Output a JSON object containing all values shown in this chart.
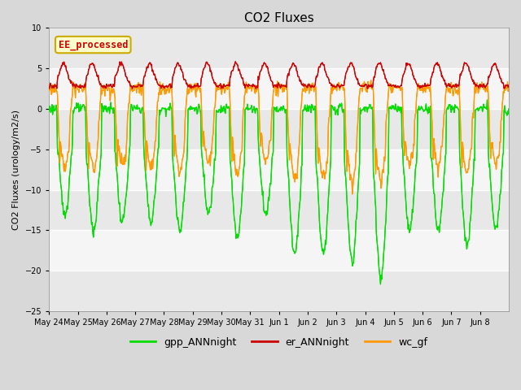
{
  "title": "CO2 Fluxes",
  "ylabel": "CO2 Fluxes (urology/m2/s)",
  "ylim": [
    -25,
    10
  ],
  "yticks": [
    -25,
    -20,
    -15,
    -10,
    -5,
    0,
    5,
    10
  ],
  "n_days": 16,
  "n_points_per_day": 48,
  "date_labels": [
    "May 24",
    "May 25",
    "May 26",
    "May 27",
    "May 28",
    "May 29",
    "May 30",
    "May 31",
    "Jun 1",
    "Jun 2",
    "Jun 3",
    "Jun 4",
    "Jun 5",
    "Jun 6",
    "Jun 7",
    "Jun 8"
  ],
  "legend_labels": [
    "gpp_ANNnight",
    "er_ANNnight",
    "wc_gf"
  ],
  "legend_colors": [
    "#00dd00",
    "#cc0000",
    "#ff9900"
  ],
  "line_colors": {
    "gpp": "#00dd00",
    "er": "#cc0000",
    "wc": "#ff9900"
  },
  "annotation_text": "EE_processed",
  "annotation_color": "#cc0000",
  "annotation_bg": "#ffffcc",
  "annotation_border": "#ccaa00",
  "bg_color": "#d8d8d8",
  "plot_bg": "#f0f0f0",
  "grid_color": "#ffffff",
  "title_fontsize": 11,
  "axis_fontsize": 8,
  "tick_fontsize": 7,
  "legend_fontsize": 9
}
